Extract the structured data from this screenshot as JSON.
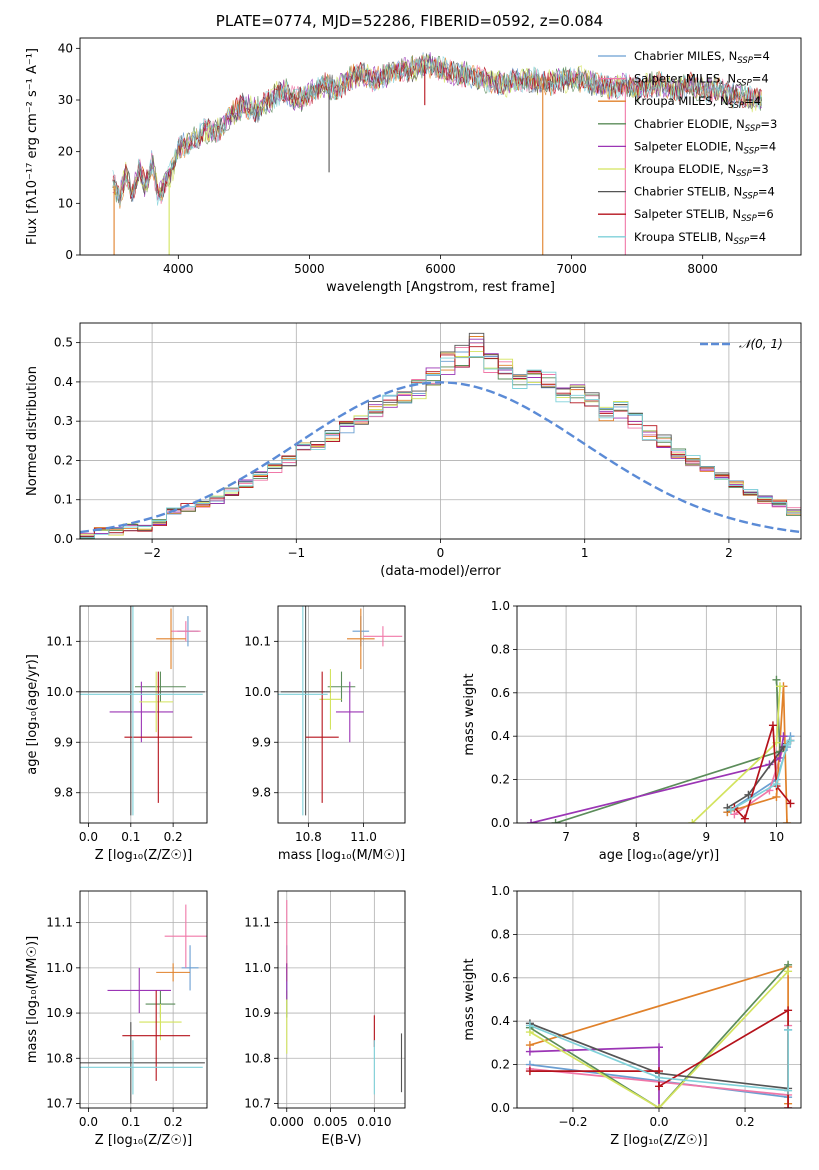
{
  "figure": {
    "title": "PLATE=0774, MJD=52286, FIBERID=0592, z=0.084"
  },
  "colors": {
    "chabrier_miles": "#6b9fd2",
    "salpeter_miles": "#f078a8",
    "kroupa_miles": "#e0812a",
    "chabrier_elodie": "#5b8c5a",
    "salpeter_elodie": "#9b35b5",
    "kroupa_elodie": "#d3e35e",
    "chabrier_stelib": "#555555",
    "salpeter_stelib": "#b5121b",
    "kroupa_stelib": "#7fd1d9",
    "normal_curve": "#5b8bd6"
  },
  "chart_data": [
    {
      "id": "spectrum",
      "type": "line",
      "xlabel": "wavelength [Angstrom, rest frame]",
      "ylabel": "Flux [fλ10⁻¹⁷ erg cm⁻² s⁻¹ A⁻¹]",
      "xlim": [
        3250,
        8750
      ],
      "ylim": [
        0,
        42
      ],
      "xticks": [
        4000,
        5000,
        6000,
        7000,
        8000
      ],
      "yticks": [
        0,
        10,
        20,
        30,
        40
      ],
      "grid": false,
      "legend_position": "top-right",
      "envelope": {
        "x": [
          3500,
          3550,
          3600,
          3650,
          3700,
          3750,
          3800,
          3850,
          3900,
          3950,
          4000,
          4100,
          4200,
          4300,
          4400,
          4500,
          4600,
          4700,
          4800,
          4900,
          5000,
          5100,
          5200,
          5300,
          5400,
          5500,
          5600,
          5700,
          5800,
          5900,
          6000,
          6100,
          6200,
          6300,
          6400,
          6500,
          6600,
          6700,
          6800,
          6900,
          7000,
          7100,
          7200,
          7300,
          7400,
          7500,
          7600,
          7700,
          7800,
          7900,
          8000,
          8100,
          8200,
          8300,
          8400,
          8500
        ],
        "y": [
          14,
          11,
          16,
          12,
          17,
          13,
          18,
          11,
          14,
          16,
          21,
          22,
          24,
          24,
          27,
          29,
          28,
          30,
          32,
          30,
          31,
          33,
          32,
          34,
          35,
          34,
          35,
          36,
          36,
          37,
          36,
          35,
          35,
          34,
          34,
          33,
          34,
          34,
          33,
          34,
          34,
          34,
          33,
          32,
          33,
          32,
          33,
          33,
          32,
          33,
          32,
          32,
          31,
          31,
          30,
          30
        ]
      },
      "dips": [
        {
          "x": 3510,
          "y": 0,
          "series": "Kroupa MILES"
        },
        {
          "x": 3930,
          "y": 0,
          "series": "Kroupa ELODIE"
        },
        {
          "x": 5150,
          "y": 16,
          "series": "Chabrier STELIB"
        },
        {
          "x": 5880,
          "y": 29,
          "series": "Salpeter STELIB"
        },
        {
          "x": 6780,
          "y": 0,
          "series": "Kroupa MILES"
        },
        {
          "x": 7410,
          "y": 0,
          "series": "Salpeter MILES"
        }
      ],
      "legend": [
        {
          "label": "Chabrier MILES, N",
          "sub": "SSP",
          "tail": "=4",
          "color": "#6b9fd2"
        },
        {
          "label": "Salpeter MILES, N",
          "sub": "SSP",
          "tail": "=4",
          "color": "#f078a8"
        },
        {
          "label": "Kroupa MILES, N",
          "sub": "SSP",
          "tail": "=4",
          "color": "#e0812a"
        },
        {
          "label": "Chabrier ELODIE, N",
          "sub": "SSP",
          "tail": "=3",
          "color": "#5b8c5a"
        },
        {
          "label": "Salpeter ELODIE, N",
          "sub": "SSP",
          "tail": "=4",
          "color": "#9b35b5"
        },
        {
          "label": "Kroupa ELODIE, N",
          "sub": "SSP",
          "tail": "=3",
          "color": "#d3e35e"
        },
        {
          "label": "Chabrier STELIB, N",
          "sub": "SSP",
          "tail": "=4",
          "color": "#555555"
        },
        {
          "label": "Salpeter STELIB, N",
          "sub": "SSP",
          "tail": "=6",
          "color": "#b5121b"
        },
        {
          "label": "Kroupa STELIB, N",
          "sub": "SSP",
          "tail": "=4",
          "color": "#7fd1d9"
        }
      ]
    },
    {
      "id": "residuals",
      "type": "histogram",
      "xlabel": "(data-model)/error",
      "ylabel": "Normed distribution",
      "xlim": [
        -2.5,
        2.5
      ],
      "ylim": [
        0,
        0.55
      ],
      "xticks": [
        -2,
        -1,
        0,
        1,
        2
      ],
      "yticks": [
        0.0,
        0.1,
        0.2,
        0.3,
        0.4,
        0.5
      ],
      "grid": true,
      "bin_width": 0.1,
      "bin_start": -2.5,
      "reference_counts": [
        0.01,
        0.02,
        0.02,
        0.03,
        0.03,
        0.04,
        0.07,
        0.08,
        0.09,
        0.1,
        0.12,
        0.14,
        0.16,
        0.18,
        0.2,
        0.23,
        0.24,
        0.26,
        0.28,
        0.3,
        0.33,
        0.35,
        0.37,
        0.38,
        0.42,
        0.45,
        0.47,
        0.49,
        0.45,
        0.43,
        0.4,
        0.42,
        0.41,
        0.37,
        0.37,
        0.36,
        0.32,
        0.33,
        0.3,
        0.27,
        0.25,
        0.22,
        0.2,
        0.18,
        0.16,
        0.14,
        0.12,
        0.1,
        0.09,
        0.07,
        0.06,
        0.05,
        0.04,
        0.04,
        0.03,
        0.03,
        0.02,
        0.02,
        0.02,
        0.01,
        0.01
      ],
      "legend_label": "𝒩(0, 1)",
      "legend_position": "top-right"
    },
    {
      "id": "age_vs_z",
      "type": "errorbar",
      "xlabel": "Z [log₁₀(Z/Z☉)]",
      "ylabel": "age  [log₁₀(age/yr)]",
      "xlim": [
        -0.02,
        0.28
      ],
      "ylim": [
        9.74,
        10.17
      ],
      "xticks": [
        0.0,
        0.1,
        0.2
      ],
      "yticks": [
        9.8,
        9.9,
        10.0,
        10.1
      ],
      "grid": true,
      "points": [
        {
          "series": "Chabrier MILES",
          "x": 0.235,
          "y": 10.12,
          "xerr": 0.025,
          "yerr": 0.03
        },
        {
          "series": "Salpeter MILES",
          "x": 0.23,
          "y": 10.12,
          "xerr": 0.035,
          "yerr": 0.02
        },
        {
          "series": "Kroupa MILES",
          "x": 0.195,
          "y": 10.105,
          "xerr": 0.035,
          "yerr": 0.06
        },
        {
          "series": "Chabrier ELODIE",
          "x": 0.17,
          "y": 10.01,
          "xerr": 0.06,
          "yerr": 0.03
        },
        {
          "series": "Salpeter ELODIE",
          "x": 0.125,
          "y": 9.96,
          "xerr": 0.075,
          "yerr": 0.06
        },
        {
          "series": "Kroupa ELODIE",
          "x": 0.16,
          "y": 9.98,
          "xerr": 0.04,
          "yerr": 0.06
        },
        {
          "series": "Chabrier STELIB",
          "x": 0.1,
          "y": 10.0,
          "xerr": 0.175,
          "yerr": 0.245
        },
        {
          "series": "Salpeter STELIB",
          "x": 0.165,
          "y": 9.91,
          "xerr": 0.08,
          "yerr": 0.13
        },
        {
          "series": "Kroupa STELIB",
          "x": 0.105,
          "y": 9.995,
          "xerr": 0.165,
          "yerr": 0.24
        }
      ]
    },
    {
      "id": "age_vs_mass",
      "type": "errorbar",
      "xlabel": "mass [log₁₀(M/M☉)]",
      "ylabel": "",
      "xlim": [
        10.69,
        11.15
      ],
      "ylim": [
        9.74,
        10.17
      ],
      "xticks": [
        10.8,
        11.0
      ],
      "yticks": [
        9.8,
        9.9,
        10.0,
        10.1
      ],
      "grid": true,
      "points": [
        {
          "series": "Chabrier MILES",
          "x": 10.99,
          "y": 10.12,
          "xerr": 0.03,
          "yerr": 0.03
        },
        {
          "series": "Salpeter MILES",
          "x": 11.07,
          "y": 10.11,
          "xerr": 0.07,
          "yerr": 0.02
        },
        {
          "series": "Kroupa MILES",
          "x": 10.99,
          "y": 10.105,
          "xerr": 0.05,
          "yerr": 0.06
        },
        {
          "series": "Chabrier ELODIE",
          "x": 10.92,
          "y": 10.01,
          "xerr": 0.05,
          "yerr": 0.03
        },
        {
          "series": "Salpeter ELODIE",
          "x": 10.95,
          "y": 9.96,
          "xerr": 0.05,
          "yerr": 0.06
        },
        {
          "series": "Kroupa ELODIE",
          "x": 10.88,
          "y": 9.985,
          "xerr": 0.04,
          "yerr": 0.06
        },
        {
          "series": "Chabrier STELIB",
          "x": 10.79,
          "y": 10.0,
          "xerr": 0.09,
          "yerr": 0.245
        },
        {
          "series": "Salpeter STELIB",
          "x": 10.85,
          "y": 9.91,
          "xerr": 0.06,
          "yerr": 0.13
        },
        {
          "series": "Kroupa STELIB",
          "x": 10.78,
          "y": 9.995,
          "xerr": 0.09,
          "yerr": 0.24
        }
      ]
    },
    {
      "id": "weight_vs_age",
      "type": "line",
      "xlabel": "age  [log₁₀(age/yr)]",
      "ylabel": "mass weight",
      "xlim": [
        6.3,
        10.35
      ],
      "ylim": [
        0,
        1
      ],
      "xticks": [
        7,
        8,
        9,
        10
      ],
      "yticks": [
        0.0,
        0.2,
        0.4,
        0.6,
        0.8,
        1.0
      ],
      "grid": true,
      "series": [
        {
          "name": "Chabrier MILES",
          "x": [
            9.3,
            10.0,
            10.15,
            10.2
          ],
          "y": [
            0.05,
            0.2,
            0.35,
            0.4
          ]
        },
        {
          "name": "Salpeter MILES",
          "x": [
            9.4,
            9.9,
            10.1,
            10.2
          ],
          "y": [
            0.04,
            0.15,
            0.35,
            0.38
          ]
        },
        {
          "name": "Kroupa MILES",
          "x": [
            9.3,
            10.0,
            10.1,
            10.15
          ],
          "y": [
            0.05,
            0.12,
            0.63,
            0.0
          ]
        },
        {
          "name": "Chabrier ELODIE",
          "x": [
            6.85,
            10.05,
            10.0
          ],
          "y": [
            0.0,
            0.33,
            0.66
          ]
        },
        {
          "name": "Salpeter ELODIE",
          "x": [
            6.5,
            9.9,
            10.05,
            10.1
          ],
          "y": [
            0.0,
            0.27,
            0.3,
            0.4
          ]
        },
        {
          "name": "Kroupa ELODIE",
          "x": [
            8.8,
            10.0,
            10.05
          ],
          "y": [
            0.0,
            0.37,
            0.63
          ]
        },
        {
          "name": "Chabrier STELIB",
          "x": [
            9.3,
            9.6,
            10.1,
            10.2
          ],
          "y": [
            0.07,
            0.13,
            0.35,
            0.38
          ]
        },
        {
          "name": "Salpeter STELIB",
          "x": [
            9.4,
            9.55,
            9.95,
            10.0,
            10.2
          ],
          "y": [
            0.07,
            0.02,
            0.45,
            0.17,
            0.09
          ]
        },
        {
          "name": "Kroupa STELIB",
          "x": [
            9.35,
            10.0,
            10.15,
            10.2
          ],
          "y": [
            0.06,
            0.18,
            0.36,
            0.38
          ]
        }
      ]
    },
    {
      "id": "mass_vs_z",
      "type": "errorbar",
      "xlabel": "Z [log₁₀(Z/Z☉)]",
      "ylabel": "mass [log₁₀(M/M☉)]",
      "xlim": [
        -0.02,
        0.28
      ],
      "ylim": [
        10.69,
        11.17
      ],
      "xticks": [
        0.0,
        0.1,
        0.2
      ],
      "yticks": [
        10.7,
        10.8,
        10.9,
        11.0,
        11.1
      ],
      "grid": true,
      "points": [
        {
          "series": "Chabrier MILES",
          "x": 0.24,
          "y": 11.0,
          "xerr": 0.02,
          "yerr": 0.05
        },
        {
          "series": "Salpeter MILES",
          "x": 0.23,
          "y": 11.07,
          "xerr": 0.05,
          "yerr": 0.07
        },
        {
          "series": "Kroupa MILES",
          "x": 0.2,
          "y": 10.99,
          "xerr": 0.04,
          "yerr": 0.02
        },
        {
          "series": "Chabrier ELODIE",
          "x": 0.17,
          "y": 10.92,
          "xerr": 0.035,
          "yerr": 0.03
        },
        {
          "series": "Salpeter ELODIE",
          "x": 0.12,
          "y": 10.95,
          "xerr": 0.075,
          "yerr": 0.05
        },
        {
          "series": "Kroupa ELODIE",
          "x": 0.17,
          "y": 10.88,
          "xerr": 0.05,
          "yerr": 0.04
        },
        {
          "series": "Chabrier STELIB",
          "x": 0.1,
          "y": 10.79,
          "xerr": 0.175,
          "yerr": 0.09
        },
        {
          "series": "Salpeter STELIB",
          "x": 0.16,
          "y": 10.85,
          "xerr": 0.08,
          "yerr": 0.1
        },
        {
          "series": "Kroupa STELIB",
          "x": 0.105,
          "y": 10.78,
          "xerr": 0.165,
          "yerr": 0.06
        }
      ]
    },
    {
      "id": "mass_vs_ebv",
      "type": "errorbar",
      "xlabel": "E(B-V)",
      "ylabel": "",
      "xlim": [
        -0.001,
        0.0135
      ],
      "ylim": [
        10.69,
        11.17
      ],
      "xticks": [
        0.0,
        0.005,
        0.01
      ],
      "xtick_labels": [
        "0.000",
        "0.005",
        "0.010"
      ],
      "yticks": [
        10.7,
        10.8,
        10.9,
        11.0,
        11.1
      ],
      "grid": true,
      "points": [
        {
          "series": "Chabrier MILES",
          "x": 0.0,
          "y": 11.0,
          "xerr": 0.0,
          "yerr": 0.05
        },
        {
          "series": "Salpeter MILES",
          "x": 0.0,
          "y": 11.07,
          "xerr": 0.0,
          "yerr": 0.08
        },
        {
          "series": "Kroupa MILES",
          "x": 0.0,
          "y": 10.99,
          "xerr": 0.0,
          "yerr": 0.02
        },
        {
          "series": "Chabrier ELODIE",
          "x": 0.0,
          "y": 10.92,
          "xerr": 0.0,
          "yerr": 0.03
        },
        {
          "series": "Salpeter ELODIE",
          "x": 0.0,
          "y": 10.97,
          "xerr": 0.0,
          "yerr": 0.04
        },
        {
          "series": "Kroupa ELODIE",
          "x": 0.0,
          "y": 10.87,
          "xerr": 0.0,
          "yerr": 0.06
        },
        {
          "series": "Chabrier STELIB",
          "x": 0.0131,
          "y": 10.79,
          "xerr": 0.0,
          "yerr": 0.065
        },
        {
          "series": "Salpeter STELIB",
          "x": 0.01,
          "y": 10.86,
          "xerr": 0.0,
          "yerr": 0.035
        },
        {
          "series": "Kroupa STELIB",
          "x": 0.01,
          "y": 10.78,
          "xerr": 0.0,
          "yerr": 0.06
        }
      ]
    },
    {
      "id": "weight_vs_z",
      "type": "line",
      "xlabel": "Z [log₁₀(Z/Z☉)]",
      "ylabel": "mass weight",
      "xlim": [
        -0.33,
        0.33
      ],
      "ylim": [
        0,
        1
      ],
      "xticks": [
        -0.2,
        0.0,
        0.2
      ],
      "yticks": [
        0.0,
        0.2,
        0.4,
        0.6,
        0.8,
        1.0
      ],
      "grid": true,
      "series": [
        {
          "name": "Chabrier MILES",
          "x": [
            -0.3,
            0.3,
            0.3
          ],
          "y": [
            0.2,
            0.05,
            0.36
          ]
        },
        {
          "name": "Salpeter MILES",
          "x": [
            -0.3,
            0.3,
            0.3
          ],
          "y": [
            0.18,
            0.06,
            0.38
          ]
        },
        {
          "name": "Kroupa MILES",
          "x": [
            -0.3,
            0.3,
            0.3
          ],
          "y": [
            0.29,
            0.65,
            0.02
          ]
        },
        {
          "name": "Chabrier ELODIE",
          "x": [
            -0.3,
            0.0,
            0.3
          ],
          "y": [
            0.37,
            0.0,
            0.66
          ]
        },
        {
          "name": "Salpeter ELODIE",
          "x": [
            -0.3,
            0.0,
            0.0
          ],
          "y": [
            0.26,
            0.28,
            0.0
          ]
        },
        {
          "name": "Kroupa ELODIE",
          "x": [
            -0.3,
            0.0,
            0.3
          ],
          "y": [
            0.35,
            0.0,
            0.63
          ]
        },
        {
          "name": "Chabrier STELIB",
          "x": [
            -0.3,
            0.0,
            0.3
          ],
          "y": [
            0.39,
            0.16,
            0.09
          ]
        },
        {
          "name": "Salpeter STELIB",
          "x": [
            -0.3,
            0.0,
            0.0,
            0.3,
            0.3
          ],
          "y": [
            0.17,
            0.17,
            0.1,
            0.45,
            0.0
          ]
        },
        {
          "name": "Kroupa STELIB",
          "x": [
            -0.3,
            0.0,
            0.3,
            0.3
          ],
          "y": [
            0.38,
            0.14,
            0.08,
            0.36
          ]
        }
      ]
    }
  ]
}
